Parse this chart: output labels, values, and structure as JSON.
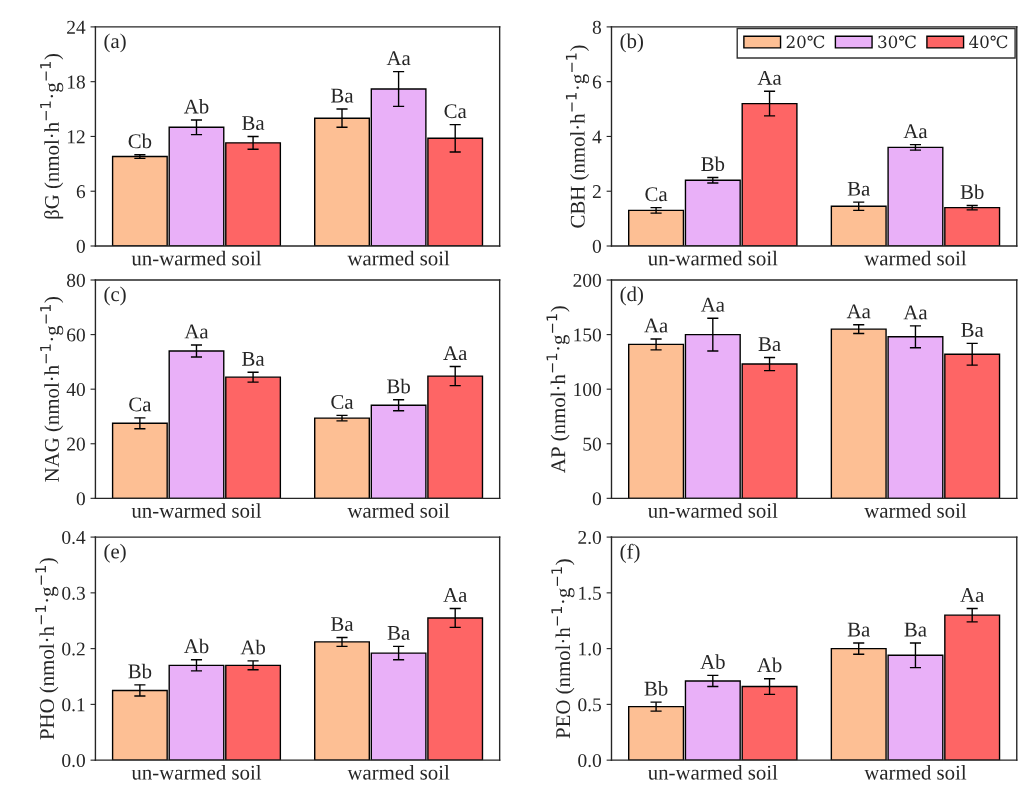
{
  "chart_data": [
    {
      "type": "bar",
      "categories": [
        "un-warmed soil",
        "warmed soil"
      ],
      "ylabel": "βG (nmol·h$^{−1}$·g$^{−1}$)",
      "ylim": [
        0,
        24
      ],
      "yticks": [
        0,
        6,
        12,
        18,
        24
      ],
      "annotations": [
        "(a)"
      ],
      "legend": false,
      "series": [
        {
          "color": "#fdbf94",
          "values": [
            9.8,
            14.0
          ],
          "errors": [
            0.2,
            1.0
          ],
          "value_labels": [
            "Cb",
            "Ba"
          ]
        },
        {
          "color": "#e9b0f8",
          "values": [
            13.0,
            17.2
          ],
          "errors": [
            0.8,
            1.9
          ],
          "value_labels": [
            "Ab",
            "Aa"
          ]
        },
        {
          "color": "#fe6565",
          "values": [
            11.3,
            11.8
          ],
          "errors": [
            0.7,
            1.5
          ],
          "value_labels": [
            "Ba",
            "Ca"
          ]
        }
      ]
    },
    {
      "type": "bar",
      "categories": [
        "un-warmed soil",
        "warmed soil"
      ],
      "ylabel": "CBH (nmol·h$^{−1}$·g$^{−1}$)",
      "ylim": [
        0,
        8
      ],
      "yticks": [
        0,
        2,
        4,
        6,
        8
      ],
      "annotations": [
        "(b)"
      ],
      "legend": "top right",
      "series": [
        {
          "name": "20℃",
          "color": "#fdbf94",
          "values": [
            1.3,
            1.45
          ],
          "errors": [
            0.1,
            0.15
          ],
          "value_labels": [
            "Ca",
            "Ba"
          ]
        },
        {
          "name": "30℃",
          "color": "#e9b0f8",
          "values": [
            2.4,
            3.6
          ],
          "errors": [
            0.1,
            0.1
          ],
          "value_labels": [
            "Bb",
            "Aa"
          ]
        },
        {
          "name": "40℃",
          "color": "#fe6565",
          "values": [
            5.2,
            1.4
          ],
          "errors": [
            0.45,
            0.08
          ],
          "value_labels": [
            "Aa",
            "Bb"
          ]
        }
      ]
    },
    {
      "type": "bar",
      "categories": [
        "un-warmed soil",
        "warmed soil"
      ],
      "ylabel": "NAG (nmol·h$^{−1}$·g$^{−1}$)",
      "ylim": [
        0,
        80
      ],
      "yticks": [
        0,
        20,
        40,
        60,
        80
      ],
      "annotations": [
        "(c)"
      ],
      "legend": false,
      "series": [
        {
          "color": "#fdbf94",
          "values": [
            27.5,
            29.4
          ],
          "errors": [
            2,
            1
          ],
          "value_labels": [
            "Ca",
            "Ca"
          ]
        },
        {
          "color": "#e9b0f8",
          "values": [
            54,
            34.1
          ],
          "errors": [
            2.2,
            2
          ],
          "value_labels": [
            "Aa",
            "Bb"
          ]
        },
        {
          "color": "#fe6565",
          "values": [
            44.4,
            44.8
          ],
          "errors": [
            1.8,
            3.5
          ],
          "value_labels": [
            "Ba",
            "Aa"
          ]
        }
      ]
    },
    {
      "type": "bar",
      "categories": [
        "un-warmed soil",
        "warmed soil"
      ],
      "ylabel": "AP (nmol·h$^{−1}$·g$^{−1}$)",
      "ylim": [
        0,
        200
      ],
      "yticks": [
        0,
        50,
        100,
        150,
        200
      ],
      "annotations": [
        "(d)"
      ],
      "legend": false,
      "series": [
        {
          "color": "#fdbf94",
          "values": [
            141,
            155
          ],
          "errors": [
            5,
            4
          ],
          "value_labels": [
            "Aa",
            "Aa"
          ]
        },
        {
          "color": "#e9b0f8",
          "values": [
            150,
            148
          ],
          "errors": [
            15,
            10
          ],
          "value_labels": [
            "Aa",
            "Aa"
          ]
        },
        {
          "color": "#fe6565",
          "values": [
            123,
            132
          ],
          "errors": [
            6,
            10
          ],
          "value_labels": [
            "Ba",
            "Ba"
          ]
        }
      ]
    },
    {
      "type": "bar",
      "categories": [
        "un-warmed soil",
        "warmed soil"
      ],
      "ylabel": "PHO (nmol·h$^{−1}$·g$^{−1}$)",
      "ylim": [
        0,
        0.4
      ],
      "yticks": [
        {
          "value": 0,
          "label": "0.0"
        },
        0.1,
        0.2,
        0.3,
        0.4
      ],
      "annotations": [
        "(e)"
      ],
      "legend": false,
      "series": [
        {
          "color": "#fdbf94",
          "values": [
            0.125,
            0.212
          ],
          "errors": [
            0.01,
            0.008
          ],
          "value_labels": [
            "Bb",
            "Ba"
          ]
        },
        {
          "color": "#e9b0f8",
          "values": [
            0.17,
            0.192
          ],
          "errors": [
            0.01,
            0.012
          ],
          "value_labels": [
            "Ab",
            "Ba"
          ]
        },
        {
          "color": "#fe6565",
          "values": [
            0.17,
            0.255
          ],
          "errors": [
            0.008,
            0.017
          ],
          "value_labels": [
            "Ab",
            "Aa"
          ]
        }
      ]
    },
    {
      "type": "bar",
      "categories": [
        "un-warmed soil",
        "warmed soil"
      ],
      "ylabel": "PEO (nmol·h$^{−1}$·g$^{−1}$)",
      "ylim": [
        0,
        2.0
      ],
      "yticks": [
        {
          "value": 0,
          "label": "0.0"
        },
        0.5,
        {
          "value": 1,
          "label": "1.0"
        },
        1.5,
        {
          "value": 2,
          "label": "2.0"
        }
      ],
      "annotations": [
        "(f)"
      ],
      "legend": false,
      "series": [
        {
          "color": "#fdbf94",
          "values": [
            0.48,
            1.0
          ],
          "errors": [
            0.04,
            0.05
          ],
          "value_labels": [
            "Bb",
            "Ba"
          ]
        },
        {
          "color": "#e9b0f8",
          "values": [
            0.71,
            0.94
          ],
          "errors": [
            0.05,
            0.11
          ],
          "value_labels": [
            "Ab",
            "Ba"
          ]
        },
        {
          "color": "#fe6565",
          "values": [
            0.66,
            1.3
          ],
          "errors": [
            0.07,
            0.06
          ],
          "value_labels": [
            "Ab",
            "Aa"
          ]
        }
      ]
    }
  ]
}
